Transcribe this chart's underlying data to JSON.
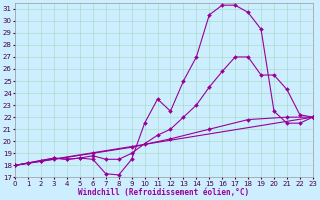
{
  "background_color": "#cceeff",
  "grid_color": "#aaddcc",
  "line_color": "#990099",
  "marker": "D",
  "marker_size": 2.0,
  "line_width": 0.8,
  "xlim": [
    0,
    23
  ],
  "ylim": [
    17,
    31.5
  ],
  "xlabel": "Windchill (Refroidissement éolien,°C)",
  "xlabel_fontsize": 5.5,
  "xticks": [
    0,
    1,
    2,
    3,
    4,
    5,
    6,
    7,
    8,
    9,
    10,
    11,
    12,
    13,
    14,
    15,
    16,
    17,
    18,
    19,
    20,
    21,
    22,
    23
  ],
  "yticks": [
    17,
    18,
    19,
    20,
    21,
    22,
    23,
    24,
    25,
    26,
    27,
    28,
    29,
    30,
    31
  ],
  "tick_fontsize": 5.0,
  "curve1_x": [
    0,
    1,
    2,
    3,
    4,
    5,
    6,
    7,
    8,
    9,
    10,
    11,
    12,
    13,
    14,
    15,
    16,
    17,
    18,
    19,
    20,
    21,
    22,
    23
  ],
  "curve1_y": [
    18.0,
    18.2,
    18.4,
    18.6,
    18.5,
    18.6,
    18.5,
    17.3,
    17.2,
    18.5,
    21.5,
    23.5,
    22.5,
    25.0,
    27.0,
    30.5,
    31.3,
    31.3,
    30.7,
    29.3,
    22.5,
    21.5,
    21.5,
    22.0
  ],
  "curve2_x": [
    0,
    1,
    2,
    3,
    4,
    5,
    6,
    7,
    8,
    9,
    10,
    11,
    12,
    13,
    14,
    15,
    16,
    17,
    18,
    19,
    20,
    21,
    22,
    23
  ],
  "curve2_y": [
    18.0,
    18.2,
    18.4,
    18.6,
    18.5,
    18.6,
    18.8,
    18.5,
    18.5,
    19.0,
    19.8,
    20.5,
    21.0,
    22.0,
    23.0,
    24.5,
    25.8,
    27.0,
    27.0,
    25.5,
    25.5,
    24.3,
    22.2,
    22.0
  ],
  "curve3_x": [
    0,
    3,
    6,
    9,
    12,
    15,
    18,
    21,
    23
  ],
  "curve3_y": [
    18.0,
    18.5,
    19.0,
    19.5,
    20.2,
    21.0,
    21.8,
    22.0,
    22.0
  ],
  "curve4_x": [
    0,
    23
  ],
  "curve4_y": [
    18.0,
    22.0
  ]
}
